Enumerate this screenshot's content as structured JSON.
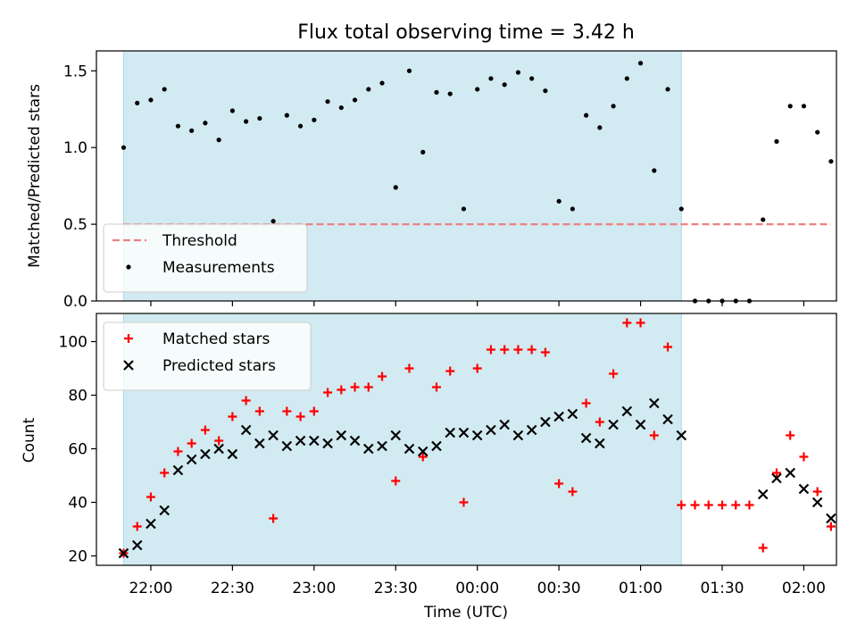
{
  "title": "Flux total observing time = 3.42 h",
  "xlabel": "Time (UTC)",
  "x_ticks": [
    {
      "t": "22:00",
      "label": "22:00"
    },
    {
      "t": "22:30",
      "label": "22:30"
    },
    {
      "t": "23:00",
      "label": "23:00"
    },
    {
      "t": "23:30",
      "label": "23:30"
    },
    {
      "t": "00:00",
      "label": "00:00"
    },
    {
      "t": "00:30",
      "label": "00:30"
    },
    {
      "t": "01:00",
      "label": "01:00"
    },
    {
      "t": "01:30",
      "label": "01:30"
    },
    {
      "t": "02:00",
      "label": "02:00"
    }
  ],
  "colors": {
    "shade": "#add8e6",
    "threshold": "#f08080",
    "matched": "#ff0000",
    "predicted": "#000000",
    "measure": "#000000"
  },
  "chart_data": [
    {
      "type": "scatter",
      "ylabel": "Matched/Predicted stars",
      "xlim": [
        "21:40",
        "02:12"
      ],
      "ylim": [
        0,
        1.63
      ],
      "y_ticks": [
        0.0,
        0.5,
        1.0,
        1.5
      ],
      "y_tick_labels": [
        "0.0",
        "0.5",
        "1.0",
        "1.5"
      ],
      "shaded_span": [
        "21:50",
        "01:15"
      ],
      "legend_position": "lower-left",
      "threshold": {
        "name": "Threshold",
        "value": 0.5,
        "x": [
          "21:50",
          "02:10"
        ]
      },
      "series": [
        {
          "name": "Measurements",
          "marker": "dot",
          "points": [
            [
              "21:50",
              1.0
            ],
            [
              "21:55",
              1.29
            ],
            [
              "22:00",
              1.31
            ],
            [
              "22:05",
              1.38
            ],
            [
              "22:10",
              1.14
            ],
            [
              "22:15",
              1.11
            ],
            [
              "22:20",
              1.16
            ],
            [
              "22:25",
              1.05
            ],
            [
              "22:30",
              1.24
            ],
            [
              "22:35",
              1.17
            ],
            [
              "22:40",
              1.19
            ],
            [
              "22:45",
              0.52
            ],
            [
              "22:50",
              1.21
            ],
            [
              "22:55",
              1.14
            ],
            [
              "23:00",
              1.18
            ],
            [
              "23:05",
              1.3
            ],
            [
              "23:10",
              1.26
            ],
            [
              "23:15",
              1.31
            ],
            [
              "23:20",
              1.38
            ],
            [
              "23:25",
              1.42
            ],
            [
              "23:30",
              0.74
            ],
            [
              "23:35",
              1.5
            ],
            [
              "23:40",
              0.97
            ],
            [
              "23:45",
              1.36
            ],
            [
              "23:50",
              1.35
            ],
            [
              "23:55",
              0.6
            ],
            [
              "00:00",
              1.38
            ],
            [
              "00:05",
              1.45
            ],
            [
              "00:10",
              1.41
            ],
            [
              "00:15",
              1.49
            ],
            [
              "00:20",
              1.45
            ],
            [
              "00:25",
              1.37
            ],
            [
              "00:30",
              0.65
            ],
            [
              "00:35",
              0.6
            ],
            [
              "00:40",
              1.21
            ],
            [
              "00:45",
              1.13
            ],
            [
              "00:50",
              1.27
            ],
            [
              "00:55",
              1.45
            ],
            [
              "01:00",
              1.55
            ],
            [
              "01:05",
              0.85
            ],
            [
              "01:10",
              1.38
            ],
            [
              "01:15",
              0.6
            ],
            [
              "01:20",
              0.0
            ],
            [
              "01:25",
              0.0
            ],
            [
              "01:30",
              0.0
            ],
            [
              "01:35",
              0.0
            ],
            [
              "01:40",
              0.0
            ],
            [
              "01:45",
              0.53
            ],
            [
              "01:50",
              1.04
            ],
            [
              "01:55",
              1.27
            ],
            [
              "02:00",
              1.27
            ],
            [
              "02:05",
              1.1
            ],
            [
              "02:10",
              0.91
            ]
          ]
        }
      ]
    },
    {
      "type": "scatter",
      "ylabel": "Count",
      "xlim": [
        "21:40",
        "02:12"
      ],
      "ylim": [
        16.5,
        110.5
      ],
      "y_ticks": [
        20,
        40,
        60,
        80,
        100
      ],
      "y_tick_labels": [
        "20",
        "40",
        "60",
        "80",
        "100"
      ],
      "shaded_span": [
        "21:50",
        "01:15"
      ],
      "legend_position": "upper-left",
      "series": [
        {
          "name": "Matched stars",
          "marker": "plus",
          "points": [
            [
              "21:50",
              21
            ],
            [
              "21:55",
              31
            ],
            [
              "22:00",
              42
            ],
            [
              "22:05",
              51
            ],
            [
              "22:10",
              59
            ],
            [
              "22:15",
              62
            ],
            [
              "22:20",
              67
            ],
            [
              "22:25",
              63
            ],
            [
              "22:30",
              72
            ],
            [
              "22:35",
              78
            ],
            [
              "22:40",
              74
            ],
            [
              "22:45",
              34
            ],
            [
              "22:50",
              74
            ],
            [
              "22:55",
              72
            ],
            [
              "23:00",
              74
            ],
            [
              "23:05",
              81
            ],
            [
              "23:10",
              82
            ],
            [
              "23:15",
              83
            ],
            [
              "23:20",
              83
            ],
            [
              "23:25",
              87
            ],
            [
              "23:30",
              48
            ],
            [
              "23:35",
              90
            ],
            [
              "23:40",
              57
            ],
            [
              "23:45",
              83
            ],
            [
              "23:50",
              89
            ],
            [
              "23:55",
              40
            ],
            [
              "00:00",
              90
            ],
            [
              "00:05",
              97
            ],
            [
              "00:10",
              97
            ],
            [
              "00:15",
              97
            ],
            [
              "00:20",
              97
            ],
            [
              "00:25",
              96
            ],
            [
              "00:30",
              47
            ],
            [
              "00:35",
              44
            ],
            [
              "00:40",
              77
            ],
            [
              "00:45",
              70
            ],
            [
              "00:50",
              88
            ],
            [
              "00:55",
              107
            ],
            [
              "01:00",
              107
            ],
            [
              "01:05",
              65
            ],
            [
              "01:10",
              98
            ],
            [
              "01:15",
              39
            ],
            [
              "01:20",
              39
            ],
            [
              "01:25",
              39
            ],
            [
              "01:30",
              39
            ],
            [
              "01:35",
              39
            ],
            [
              "01:40",
              39
            ],
            [
              "01:45",
              23
            ],
            [
              "01:50",
              51
            ],
            [
              "01:55",
              65
            ],
            [
              "02:00",
              57
            ],
            [
              "02:05",
              44
            ],
            [
              "02:10",
              31
            ]
          ]
        },
        {
          "name": "Predicted stars",
          "marker": "x",
          "points": [
            [
              "21:50",
              21
            ],
            [
              "21:55",
              24
            ],
            [
              "22:00",
              32
            ],
            [
              "22:05",
              37
            ],
            [
              "22:10",
              52
            ],
            [
              "22:15",
              56
            ],
            [
              "22:20",
              58
            ],
            [
              "22:25",
              60
            ],
            [
              "22:30",
              58
            ],
            [
              "22:35",
              67
            ],
            [
              "22:40",
              62
            ],
            [
              "22:45",
              65
            ],
            [
              "22:50",
              61
            ],
            [
              "22:55",
              63
            ],
            [
              "23:00",
              63
            ],
            [
              "23:05",
              62
            ],
            [
              "23:10",
              65
            ],
            [
              "23:15",
              63
            ],
            [
              "23:20",
              60
            ],
            [
              "23:25",
              61
            ],
            [
              "23:30",
              65
            ],
            [
              "23:35",
              60
            ],
            [
              "23:40",
              59
            ],
            [
              "23:45",
              61
            ],
            [
              "23:50",
              66
            ],
            [
              "23:55",
              66
            ],
            [
              "00:00",
              65
            ],
            [
              "00:05",
              67
            ],
            [
              "00:10",
              69
            ],
            [
              "00:15",
              65
            ],
            [
              "00:20",
              67
            ],
            [
              "00:25",
              70
            ],
            [
              "00:30",
              72
            ],
            [
              "00:35",
              73
            ],
            [
              "00:40",
              64
            ],
            [
              "00:45",
              62
            ],
            [
              "00:50",
              69
            ],
            [
              "00:55",
              74
            ],
            [
              "01:00",
              69
            ],
            [
              "01:05",
              77
            ],
            [
              "01:10",
              71
            ],
            [
              "01:15",
              65
            ],
            [
              "01:45",
              43
            ],
            [
              "01:50",
              49
            ],
            [
              "01:55",
              51
            ],
            [
              "02:00",
              45
            ],
            [
              "02:05",
              40
            ],
            [
              "02:10",
              34
            ]
          ]
        }
      ]
    }
  ]
}
